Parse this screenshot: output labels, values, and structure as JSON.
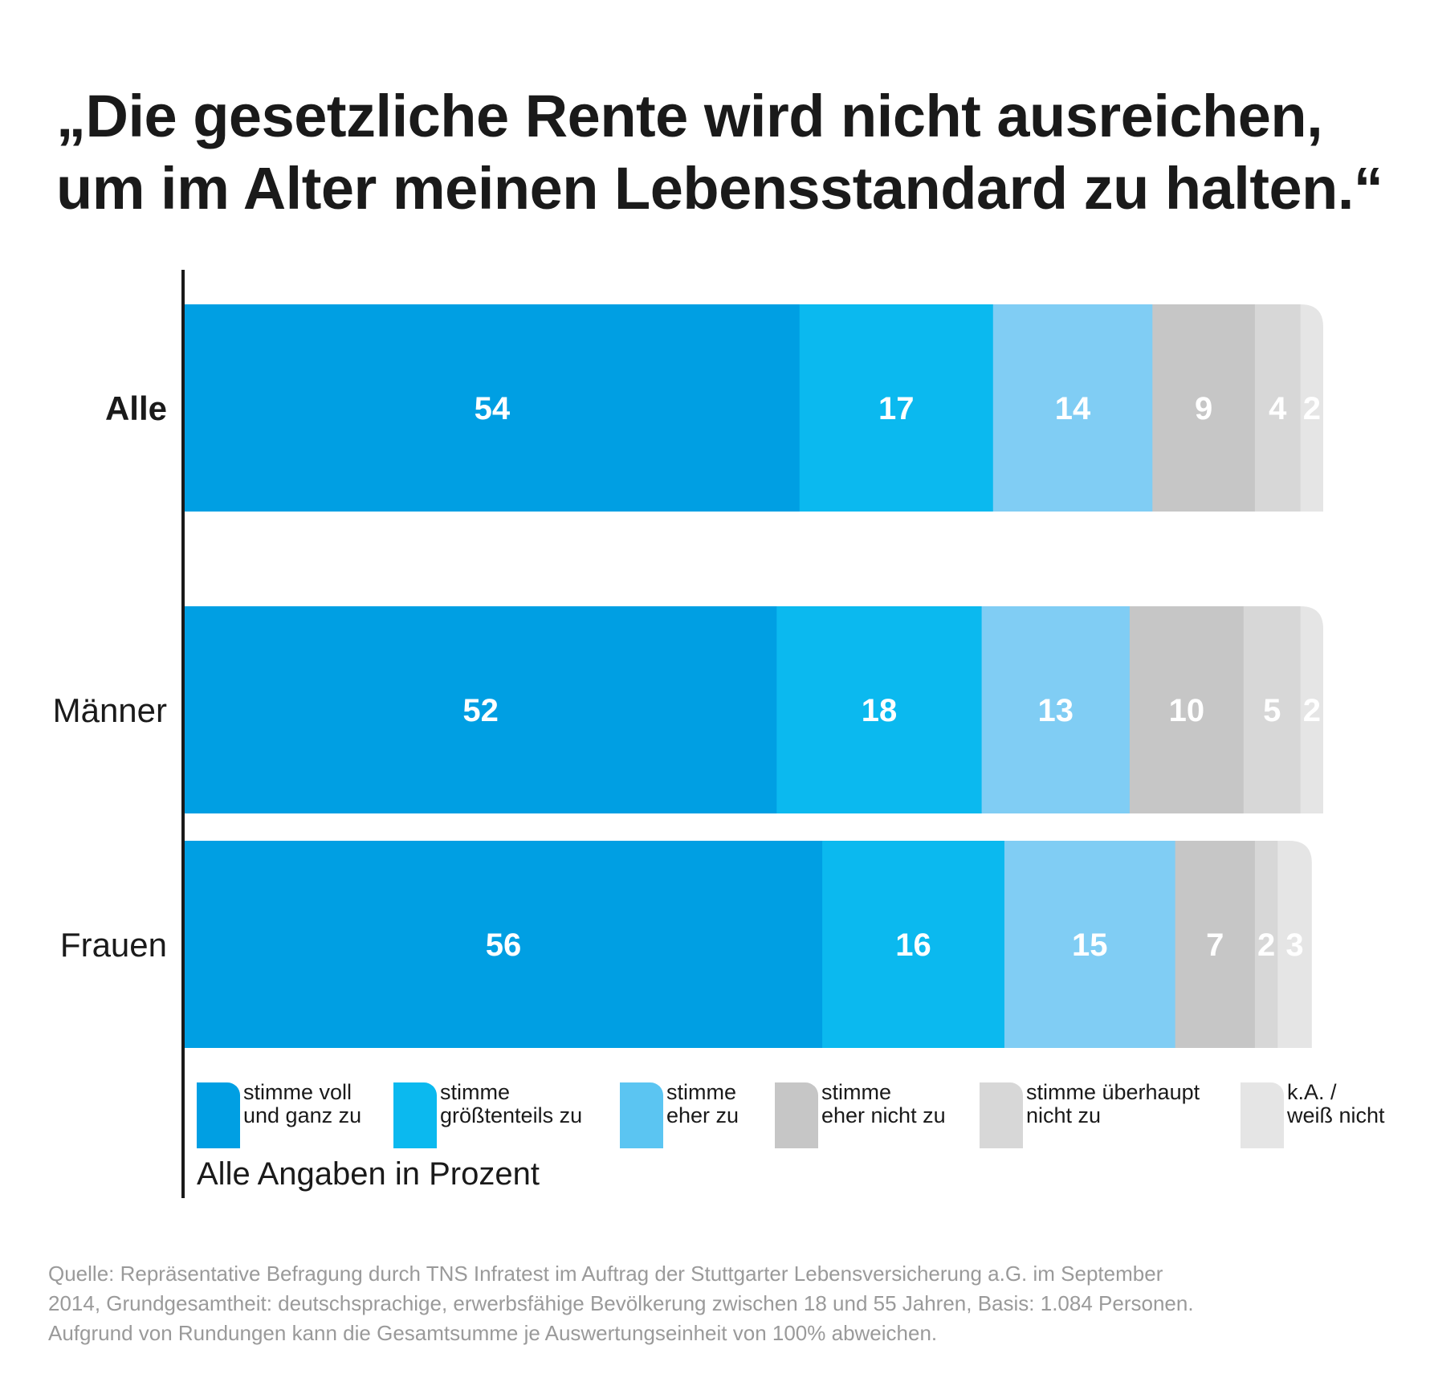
{
  "title_lines": [
    "„Die gesetzliche Rente wird nicht ausreichen,",
    "um im Alter meinen Lebensstandard zu halten.“"
  ],
  "unit_note": "Alle Angaben in Prozent",
  "source_lines": [
    "Quelle: Repräsentative Befragung durch TNS Infratest im Auftrag der Stuttgarter Lebensversicherung a.G. im September",
    "2014, Grundgesamtheit: deutschsprachige, erwerbsfähige Bevölkerung zwischen 18 und 55 Jahren, Basis: 1.084 Personen.",
    "Aufgrund von Rundungen kann die Gesamtsumme je Auswertungseinheit von 100% abweichen."
  ],
  "legend": [
    {
      "line1": "stimme voll",
      "line2": "und ganz zu"
    },
    {
      "line1": "stimme",
      "line2": "größtenteils zu"
    },
    {
      "line1": "stimme",
      "line2": "eher zu"
    },
    {
      "line1": "stimme",
      "line2": "eher nicht zu"
    },
    {
      "line1": "stimme überhaupt",
      "line2": "nicht zu"
    },
    {
      "line1": "k.A. /",
      "line2": "weiß nicht"
    }
  ],
  "chart_data": {
    "type": "bar",
    "orientation": "horizontal",
    "stacked": true,
    "categories": [
      "Alle",
      "Männer",
      "Frauen"
    ],
    "bold_categories": [
      "Alle"
    ],
    "series": [
      {
        "name": "stimme voll und ganz zu",
        "color": "#009fe3",
        "values": [
          54,
          52,
          56
        ]
      },
      {
        "name": "stimme größtenteils zu",
        "color": "#0bb9ef",
        "values": [
          17,
          18,
          16
        ]
      },
      {
        "name": "stimme eher zu",
        "color": "#80cdf4",
        "values": [
          14,
          13,
          15
        ]
      },
      {
        "name": "stimme eher nicht zu",
        "color": "#c6c6c6",
        "values": [
          9,
          10,
          7
        ]
      },
      {
        "name": "stimme überhaupt nicht zu",
        "color": "#d7d7d7",
        "values": [
          4,
          5,
          2
        ]
      },
      {
        "name": "k.A. / weiß nicht",
        "color": "#e5e5e5",
        "values": [
          2,
          2,
          3
        ]
      }
    ],
    "label_colors": [
      "#ffffff",
      "#ffffff",
      "#ffffff",
      "#ffffff",
      "#ffffff",
      "#ffffff"
    ],
    "legend_colors": [
      "#009fe3",
      "#0bb9ef",
      "#5bc5f2",
      "#c6c6c6",
      "#d7d7d7",
      "#e5e5e5"
    ],
    "xlim": [
      0,
      100
    ],
    "unit": "%",
    "grid": false,
    "legend_position": "bottom"
  }
}
